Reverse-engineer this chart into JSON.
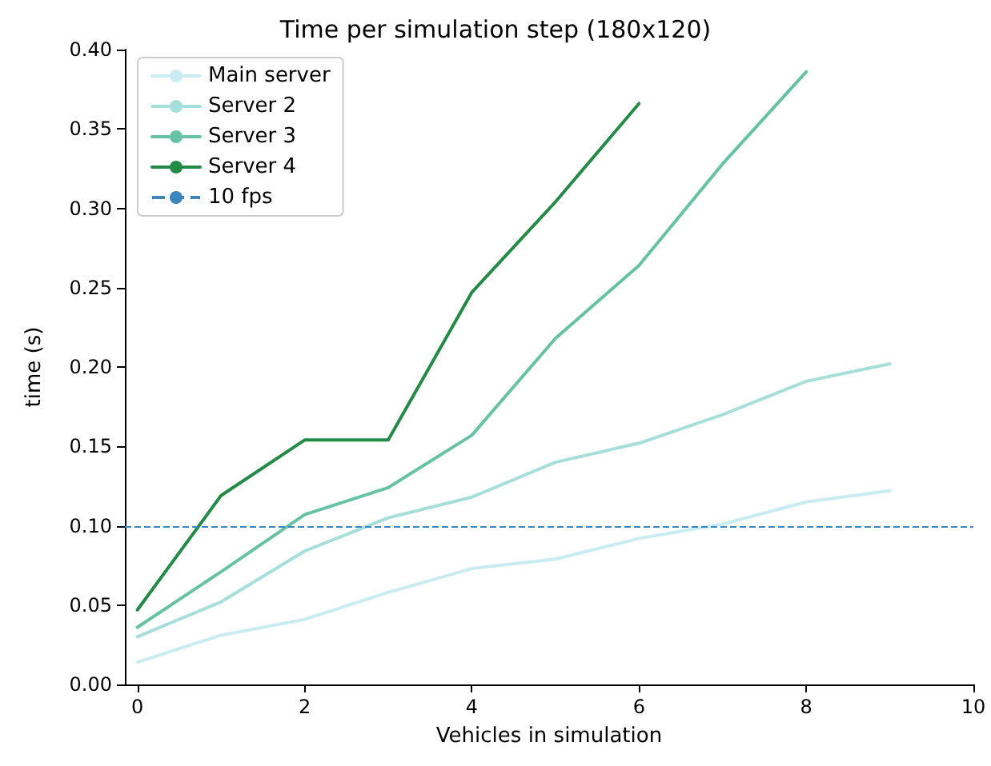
{
  "chart_data": {
    "type": "line",
    "title": "Time per simulation step (180x120)",
    "xlabel": "Vehicles in simulation",
    "ylabel": "time (s)",
    "x": [
      0,
      1,
      2,
      3,
      4,
      5,
      6,
      7,
      8,
      9
    ],
    "series": [
      {
        "name": "Main server",
        "color": "#c9ecf2",
        "values": [
          0.014,
          0.031,
          0.041,
          0.058,
          0.073,
          0.079,
          0.092,
          0.101,
          0.115,
          0.122
        ]
      },
      {
        "name": "Server 2",
        "color": "#a6dedb",
        "values": [
          0.03,
          0.052,
          0.084,
          0.105,
          0.118,
          0.14,
          0.152,
          0.17,
          0.191,
          0.202
        ]
      },
      {
        "name": "Server 3",
        "color": "#66c2a4",
        "values": [
          0.036,
          0.071,
          0.107,
          0.124,
          0.157,
          0.218,
          0.264,
          0.328,
          0.386,
          null
        ]
      },
      {
        "name": "Server 4",
        "color": "#238b45",
        "values": [
          0.047,
          0.119,
          0.154,
          0.154,
          0.247,
          0.304,
          0.366,
          null,
          null,
          null
        ]
      }
    ],
    "ref_lines": [
      {
        "axis": "y",
        "value": 0.1,
        "label": "10 fps",
        "color": "#3a86c0",
        "line_style": "dashed"
      }
    ],
    "xlim": [
      -0.15,
      10
    ],
    "xticks": [
      0,
      2,
      4,
      6,
      8,
      10
    ],
    "ylim": [
      0,
      0.4
    ],
    "yticks": [
      {
        "value": 0,
        "label": "0.00"
      },
      {
        "value": 0.05,
        "label": "0.05"
      },
      {
        "value": 0.1,
        "label": "0.10"
      },
      {
        "value": 0.15,
        "label": "0.15"
      },
      {
        "value": 0.2,
        "label": "0.20"
      },
      {
        "value": 0.25,
        "label": "0.25"
      },
      {
        "value": 0.3,
        "label": "0.30"
      },
      {
        "value": 0.35,
        "label": "0.35"
      },
      {
        "value": 0.4,
        "label": "0.40"
      }
    ],
    "grid": false,
    "legend": "top left",
    "marker": "none",
    "line_style": "solid"
  }
}
